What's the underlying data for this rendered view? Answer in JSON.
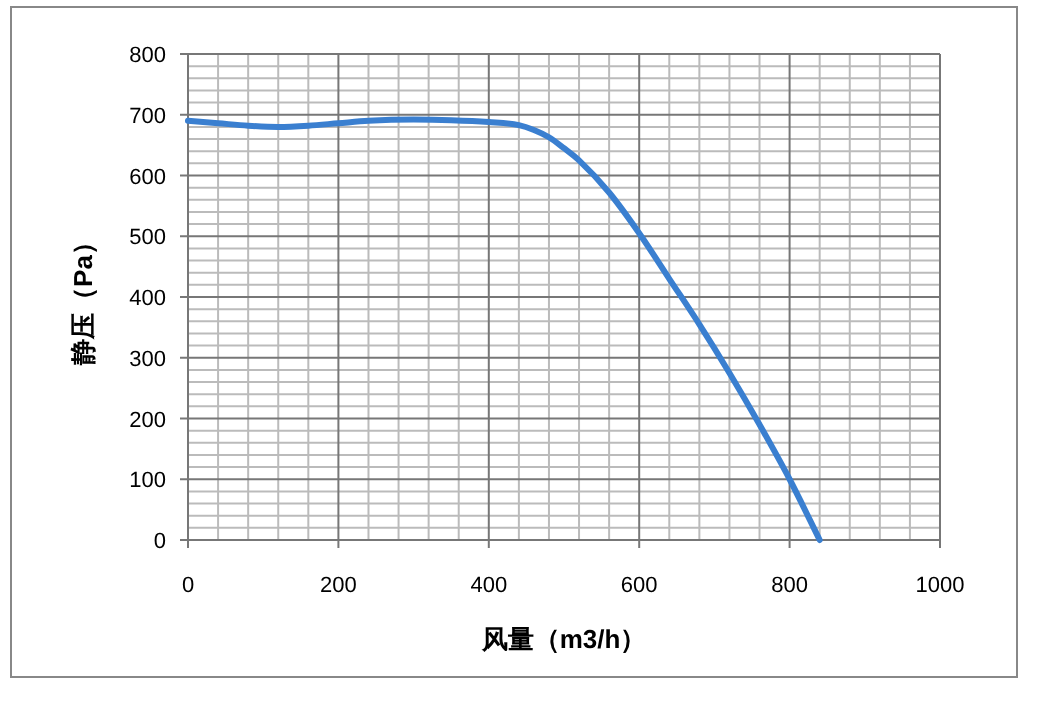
{
  "chart_data": {
    "type": "line",
    "xlabel": "风量（m3/h）",
    "ylabel": "静压（Pa）",
    "x": [
      0,
      40,
      80,
      120,
      160,
      200,
      240,
      300,
      350,
      400,
      440,
      460,
      480,
      500,
      520,
      560,
      600,
      640,
      680,
      720,
      760,
      800,
      840
    ],
    "series": [
      {
        "color": "#3a7fd0",
        "values": [
          690,
          686,
          682,
          680,
          682,
          686,
          690,
          692,
          691,
          688,
          683,
          675,
          663,
          645,
          625,
          572,
          505,
          430,
          355,
          275,
          190,
          100,
          0
        ]
      }
    ],
    "xlim": [
      0,
      1000
    ],
    "ylim": [
      0,
      800
    ],
    "xticks": [
      0,
      200,
      400,
      600,
      800,
      1000
    ],
    "yticks": [
      0,
      100,
      200,
      300,
      400,
      500,
      600,
      700,
      800
    ],
    "grid": true,
    "marker": "none",
    "line_style": "solid"
  }
}
